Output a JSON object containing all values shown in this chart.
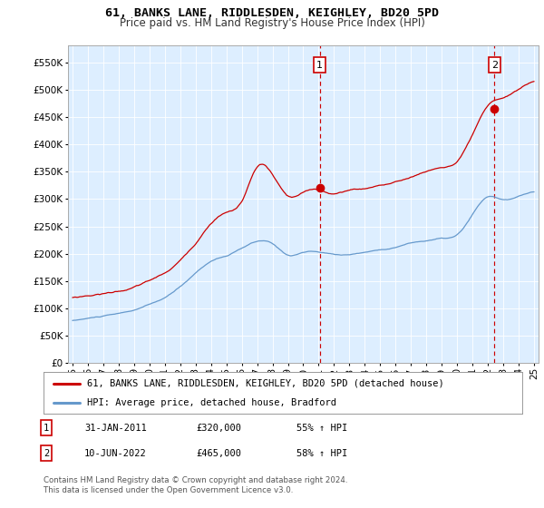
{
  "title": "61, BANKS LANE, RIDDLESDEN, KEIGHLEY, BD20 5PD",
  "subtitle": "Price paid vs. HM Land Registry's House Price Index (HPI)",
  "plot_bg_color": "#ddeeff",
  "hpi_color": "#6699cc",
  "price_color": "#cc0000",
  "dashed_color": "#cc0000",
  "ytick_labels": [
    "£0",
    "£50K",
    "£100K",
    "£150K",
    "£200K",
    "£250K",
    "£300K",
    "£350K",
    "£400K",
    "£450K",
    "£500K",
    "£550K"
  ],
  "ytick_values": [
    0,
    50000,
    100000,
    150000,
    200000,
    250000,
    300000,
    350000,
    400000,
    450000,
    500000,
    550000
  ],
  "ylim": [
    0,
    580000
  ],
  "xlim_start": 1994.7,
  "xlim_end": 2025.3,
  "sale1_x": 2011.08,
  "sale1_y": 320000,
  "sale2_x": 2022.44,
  "sale2_y": 465000,
  "legend_line1": "61, BANKS LANE, RIDDLESDEN, KEIGHLEY, BD20 5PD (detached house)",
  "legend_line2": "HPI: Average price, detached house, Bradford",
  "table_row1": [
    "1",
    "31-JAN-2011",
    "£320,000",
    "55% ↑ HPI"
  ],
  "table_row2": [
    "2",
    "10-JUN-2022",
    "£465,000",
    "58% ↑ HPI"
  ],
  "footer": "Contains HM Land Registry data © Crown copyright and database right 2024.\nThis data is licensed under the Open Government Licence v3.0."
}
